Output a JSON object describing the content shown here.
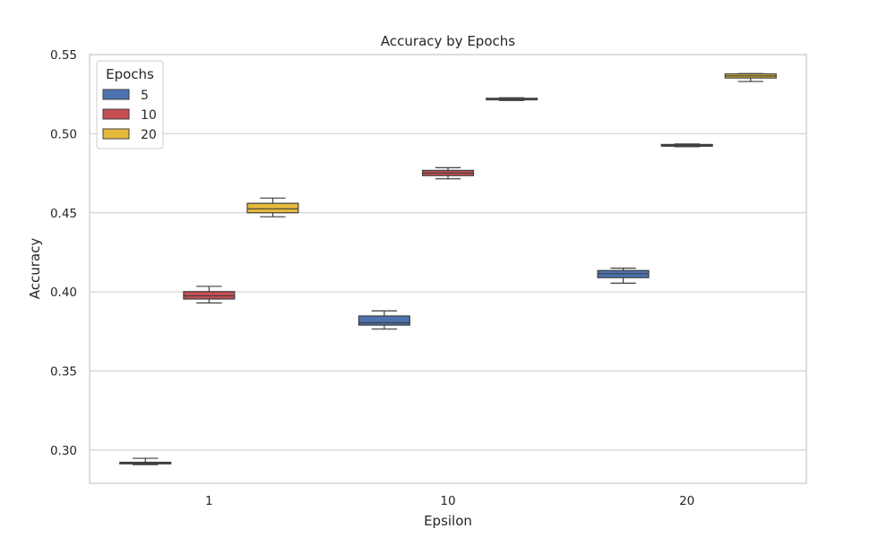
{
  "chart_data": {
    "type": "box",
    "title": "Accuracy by Epochs",
    "xlabel": "Epsilon",
    "ylabel": "Accuracy",
    "categories": [
      "1",
      "10",
      "20"
    ],
    "ylim": [
      0.279,
      0.55
    ],
    "yticks": [
      "0.30",
      "0.35",
      "0.40",
      "0.45",
      "0.50",
      "0.55"
    ],
    "grid": "horizontal",
    "legend": {
      "title": "Epochs",
      "placement": "top-left"
    },
    "series": [
      {
        "name": "5",
        "color": "#4c72b0",
        "boxes": [
          {
            "category": "1",
            "min": 0.2908,
            "q1": 0.2913,
            "median": 0.2918,
            "q3": 0.2923,
            "max": 0.2948
          },
          {
            "category": "10",
            "min": 0.3765,
            "q1": 0.379,
            "median": 0.3805,
            "q3": 0.3848,
            "max": 0.388
          },
          {
            "category": "20",
            "min": 0.4055,
            "q1": 0.409,
            "median": 0.4115,
            "q3": 0.4135,
            "max": 0.415
          }
        ]
      },
      {
        "name": "10",
        "color": "#c44e52",
        "boxes": [
          {
            "category": "1",
            "min": 0.393,
            "q1": 0.3955,
            "median": 0.3975,
            "q3": 0.4002,
            "max": 0.4035
          },
          {
            "category": "10",
            "min": 0.4715,
            "q1": 0.4735,
            "median": 0.4752,
            "q3": 0.4768,
            "max": 0.4785
          },
          {
            "category": "20",
            "min": 0.4918,
            "q1": 0.4921,
            "median": 0.4925,
            "q3": 0.4932,
            "max": 0.4935
          }
        ]
      },
      {
        "name": "20",
        "color": "#e5ba3b",
        "boxes": [
          {
            "category": "1",
            "min": 0.4475,
            "q1": 0.45,
            "median": 0.4525,
            "q3": 0.456,
            "max": 0.4593
          },
          {
            "category": "10",
            "min": 0.521,
            "q1": 0.5214,
            "median": 0.5218,
            "q3": 0.5224,
            "max": 0.5227
          },
          {
            "category": "20",
            "min": 0.533,
            "q1": 0.5352,
            "median": 0.5365,
            "q3": 0.5378,
            "max": 0.538
          }
        ]
      }
    ]
  }
}
